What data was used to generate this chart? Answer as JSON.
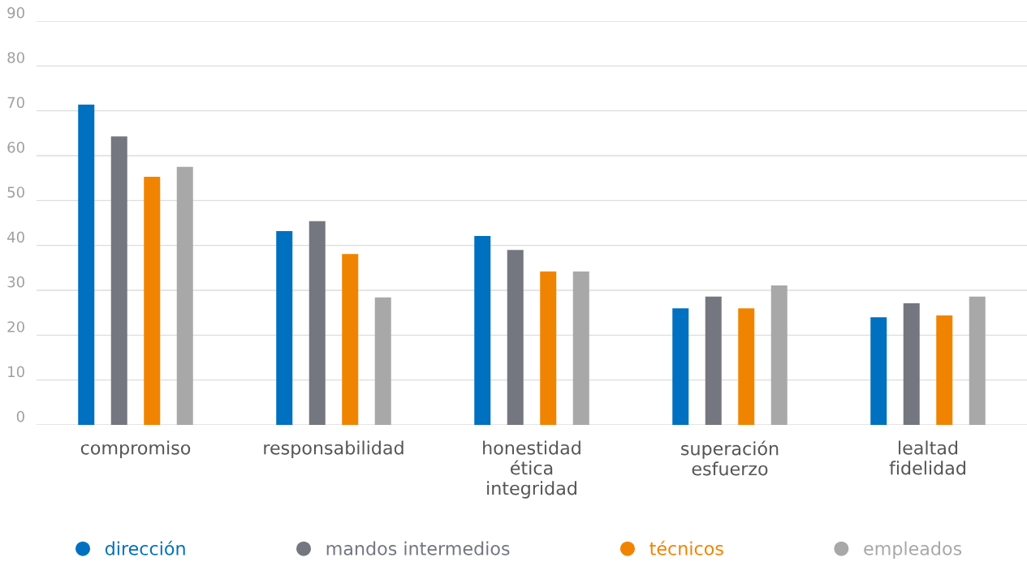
{
  "chart_data": {
    "type": "bar",
    "categories": [
      "compromiso",
      "responsabilidad",
      "honestidad\nética\nintegridad",
      "superación\nesfuerzo",
      "lealtad\nfidelidad"
    ],
    "series": [
      {
        "name": "dirección",
        "color": "#0070c0",
        "values": [
          71.4,
          43.2,
          42.1,
          26.0,
          24.0
        ]
      },
      {
        "name": "mandos intermedios",
        "color": "#747680",
        "values": [
          64.3,
          45.4,
          39.0,
          28.6,
          27.1
        ]
      },
      {
        "name": "técnicos",
        "color": "#f08400",
        "values": [
          55.3,
          38.1,
          34.2,
          26.0,
          24.4
        ]
      },
      {
        "name": "empleados",
        "color": "#a8a8a8",
        "values": [
          57.5,
          28.4,
          34.2,
          31.1,
          28.6
        ]
      }
    ],
    "ylim": [
      0,
      90
    ],
    "yticks": [
      0,
      10,
      20,
      30,
      40,
      50,
      60,
      70,
      80,
      90
    ],
    "grid": "y",
    "legend": "bottom",
    "marker": "circle"
  }
}
